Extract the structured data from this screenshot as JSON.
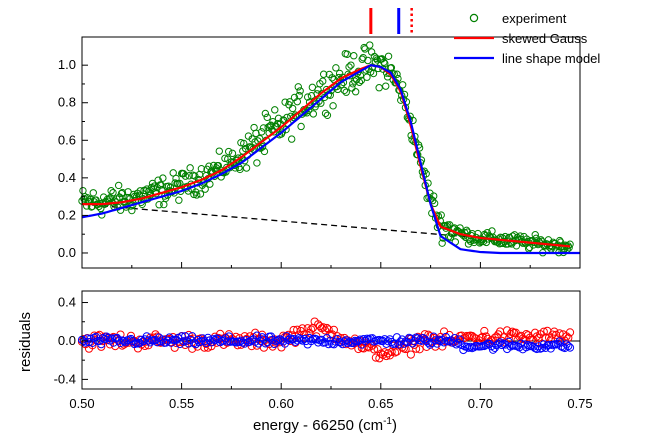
{
  "chart_data": {
    "type": "scatter",
    "xlabel_main": "energy - 66250 (cm",
    "xlabel_sup": "-1",
    "xlabel_tail": ")",
    "xlim": [
      0.5,
      0.75
    ],
    "xticks": [
      "0.50",
      "0.55",
      "0.60",
      "0.65",
      "0.70",
      "0.75"
    ],
    "xtick_values": [
      0.5,
      0.55,
      0.6,
      0.65,
      0.7,
      0.75
    ],
    "legend_position": "top-right",
    "top_panel": {
      "ylim": [
        -0.08,
        1.15
      ],
      "yticks": [
        "0.0",
        "0.2",
        "0.4",
        "0.6",
        "0.8",
        "1.0"
      ],
      "ytick_values": [
        0.0,
        0.2,
        0.4,
        0.6,
        0.8,
        1.0
      ],
      "ylabel": "",
      "legend": [
        {
          "name": "experiment",
          "marker": "open-circle",
          "color": "#008000"
        },
        {
          "name": "skewed Gauss",
          "marker": "line",
          "color": "#ff0000"
        },
        {
          "name": "line shape model",
          "marker": "line",
          "color": "#0000ff"
        }
      ],
      "experiment_trend": {
        "x": [
          0.5,
          0.51,
          0.52,
          0.53,
          0.54,
          0.55,
          0.56,
          0.57,
          0.58,
          0.59,
          0.6,
          0.61,
          0.62,
          0.63,
          0.64,
          0.645,
          0.65,
          0.655,
          0.66,
          0.665,
          0.67,
          0.675,
          0.68,
          0.69,
          0.7,
          0.71,
          0.72,
          0.73,
          0.74,
          0.745
        ],
        "y": [
          0.27,
          0.27,
          0.28,
          0.3,
          0.33,
          0.36,
          0.4,
          0.45,
          0.52,
          0.6,
          0.68,
          0.78,
          0.86,
          0.93,
          0.98,
          1.0,
          1.0,
          0.96,
          0.87,
          0.7,
          0.48,
          0.28,
          0.15,
          0.1,
          0.08,
          0.07,
          0.06,
          0.05,
          0.04,
          0.04
        ],
        "scatter_amplitude": 0.07
      },
      "skewed_gauss": {
        "x": [
          0.5,
          0.51,
          0.52,
          0.53,
          0.54,
          0.55,
          0.56,
          0.57,
          0.58,
          0.59,
          0.6,
          0.61,
          0.62,
          0.63,
          0.64,
          0.645,
          0.65,
          0.655,
          0.66,
          0.665,
          0.67,
          0.675,
          0.68,
          0.69,
          0.7,
          0.71,
          0.72,
          0.73,
          0.74,
          0.745
        ],
        "y": [
          0.26,
          0.26,
          0.27,
          0.29,
          0.32,
          0.35,
          0.39,
          0.44,
          0.51,
          0.59,
          0.67,
          0.76,
          0.85,
          0.93,
          0.98,
          1.0,
          0.99,
          0.95,
          0.86,
          0.68,
          0.46,
          0.26,
          0.14,
          0.1,
          0.08,
          0.07,
          0.06,
          0.05,
          0.04,
          0.035
        ]
      },
      "line_shape_model": {
        "x": [
          0.5,
          0.51,
          0.52,
          0.53,
          0.54,
          0.55,
          0.56,
          0.57,
          0.58,
          0.59,
          0.6,
          0.61,
          0.62,
          0.63,
          0.64,
          0.645,
          0.65,
          0.655,
          0.66,
          0.665,
          0.67,
          0.675,
          0.68,
          0.69,
          0.7,
          0.71,
          0.72,
          0.73,
          0.74,
          0.75
        ],
        "y": [
          0.19,
          0.21,
          0.24,
          0.27,
          0.3,
          0.33,
          0.37,
          0.42,
          0.48,
          0.56,
          0.64,
          0.73,
          0.82,
          0.91,
          0.97,
          1.0,
          0.99,
          0.96,
          0.87,
          0.7,
          0.48,
          0.26,
          0.09,
          0.02,
          0.005,
          0.0,
          0.0,
          0.0,
          0.0,
          0.0
        ]
      },
      "baseline": {
        "x": [
          0.5,
          0.745
        ],
        "y": [
          0.26,
          0.04
        ]
      },
      "markers": [
        {
          "x": 0.645,
          "color": "#ff0000",
          "style": "solid"
        },
        {
          "x": 0.659,
          "color": "#0000ff",
          "style": "solid"
        },
        {
          "x": 0.6655,
          "color": "#ff0000",
          "style": "dotted"
        }
      ]
    },
    "bottom_panel": {
      "ylim": [
        -0.5,
        0.52
      ],
      "yticks": [
        "-0.4",
        "0.0",
        "0.4"
      ],
      "ytick_values": [
        -0.4,
        0.0,
        0.4
      ],
      "ylabel": "residuals",
      "series": [
        {
          "name": "",
          "marker": "open-circle",
          "color": "#ff0000",
          "amplitude": 0.12
        },
        {
          "name": "",
          "marker": "open-circle",
          "color": "#0000ff",
          "amplitude": 0.07
        }
      ]
    }
  }
}
